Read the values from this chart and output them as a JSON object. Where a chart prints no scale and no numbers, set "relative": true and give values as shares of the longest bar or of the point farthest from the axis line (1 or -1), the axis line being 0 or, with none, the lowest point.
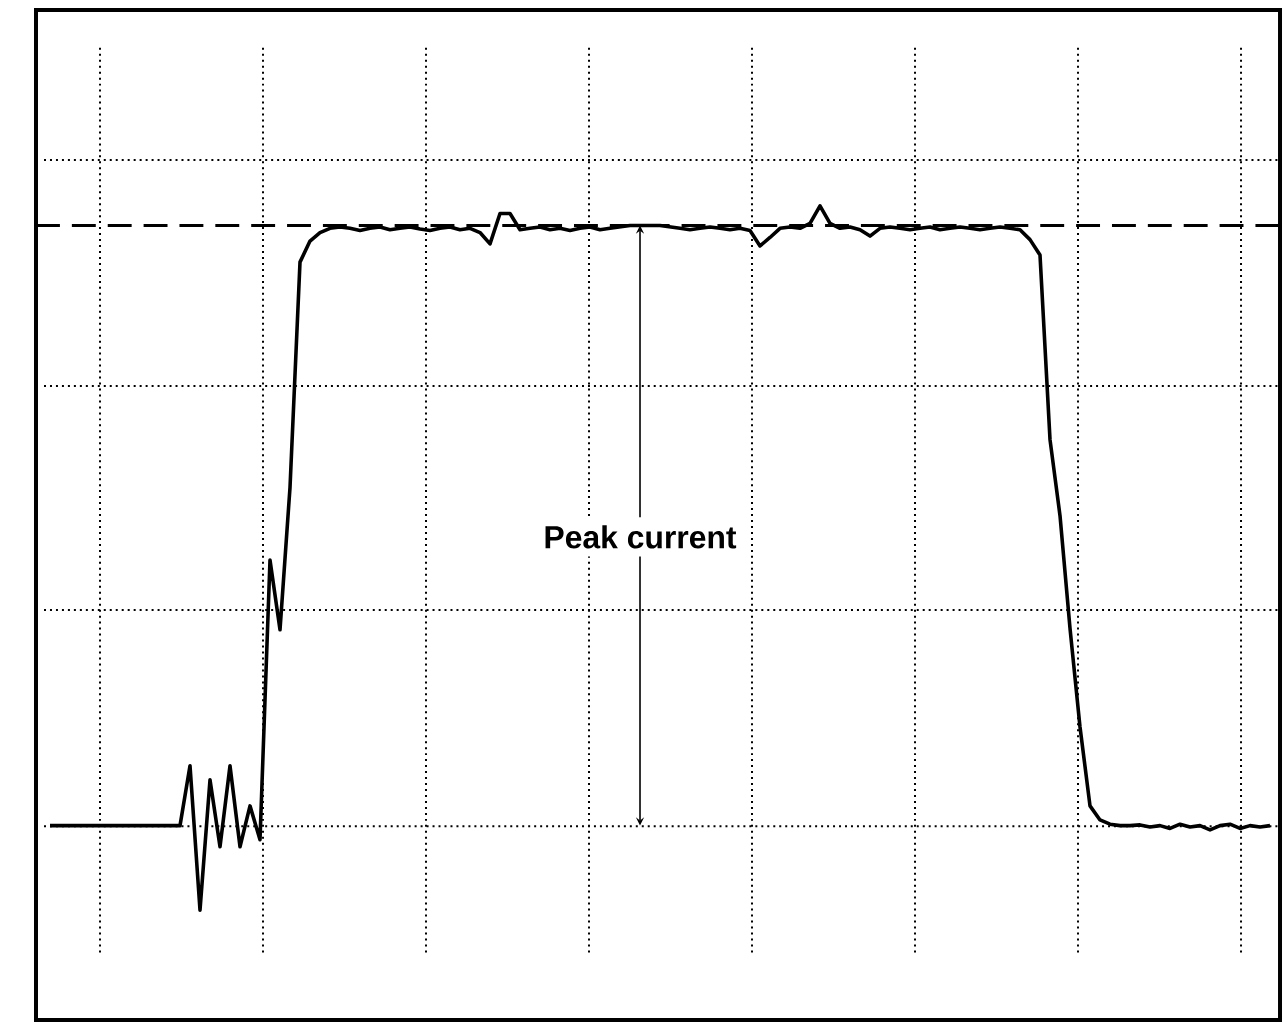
{
  "chart_data": {
    "type": "line",
    "relative": true,
    "grid": true,
    "categories": [
      null,
      null,
      null,
      null,
      null,
      null,
      null,
      null,
      null,
      null,
      null,
      null,
      null,
      null,
      null,
      null,
      null,
      null,
      null,
      null,
      null,
      null,
      null,
      null,
      null,
      null,
      null,
      null,
      null,
      null,
      null,
      null,
      null,
      null,
      null,
      null,
      null,
      null,
      null,
      null,
      null,
      null,
      null,
      null,
      null,
      null,
      null,
      null,
      null,
      null,
      null,
      null,
      null,
      null,
      null,
      null,
      null,
      null,
      null,
      null,
      null,
      null,
      null,
      null,
      null,
      null,
      null,
      null,
      null,
      null,
      null,
      null,
      null,
      null,
      null,
      null,
      null,
      null,
      null,
      null,
      null,
      null,
      null,
      null,
      null,
      null,
      null,
      null,
      null,
      null,
      null,
      null,
      null,
      null,
      null,
      null,
      null,
      null,
      null,
      null,
      null,
      null,
      null,
      null,
      null,
      null,
      null,
      null,
      null,
      null,
      null,
      null,
      null,
      null,
      null,
      null,
      null,
      null,
      null,
      null,
      null,
      null,
      null
    ],
    "series": [
      {
        "color": "#000000",
        "line_style": "solid",
        "values": [
          0.12,
          0.12,
          0.12,
          0.12,
          0.12,
          0.12,
          0.12,
          0.12,
          0.12,
          0.12,
          0.12,
          0.12,
          0.12,
          0.12,
          0.205,
          0,
          0.185,
          0.09,
          0.205,
          0.09,
          0.148,
          0.1,
          0.497,
          0.398,
          0.6,
          0.92,
          0.95,
          0.962,
          0.968,
          0.97,
          0.968,
          0.965,
          0.968,
          0.97,
          0.966,
          0.968,
          0.97,
          0.967,
          0.965,
          0.968,
          0.97,
          0.966,
          0.968,
          0.962,
          0.946,
          0.989,
          0.989,
          0.966,
          0.968,
          0.97,
          0.966,
          0.968,
          0.965,
          0.968,
          0.97,
          0.966,
          0.968,
          0.97,
          0.972,
          0.972,
          0.972,
          0.972,
          0.97,
          0.968,
          0.966,
          0.968,
          0.97,
          0.968,
          0.966,
          0.968,
          0.965,
          0.943,
          0.955,
          0.968,
          0.97,
          0.968,
          0.975,
          1.0,
          0.975,
          0.968,
          0.97,
          0.966,
          0.957,
          0.968,
          0.97,
          0.968,
          0.966,
          0.968,
          0.97,
          0.966,
          0.968,
          0.97,
          0.968,
          0.966,
          0.968,
          0.97,
          0.968,
          0.966,
          0.952,
          0.93,
          0.668,
          0.56,
          0.4,
          0.26,
          0.148,
          0.128,
          0.122,
          0.12,
          0.12,
          0.121,
          0.118,
          0.12,
          0.116,
          0.122,
          0.118,
          0.12,
          0.114,
          0.12,
          0.122,
          0.116,
          0.12,
          0.118,
          0.12
        ]
      }
    ],
    "ref_lines": [
      {
        "axis": "y",
        "value": 0.972,
        "line_style": "dashed",
        "color": "#000000"
      }
    ],
    "annotations": [
      "Peak current"
    ]
  }
}
